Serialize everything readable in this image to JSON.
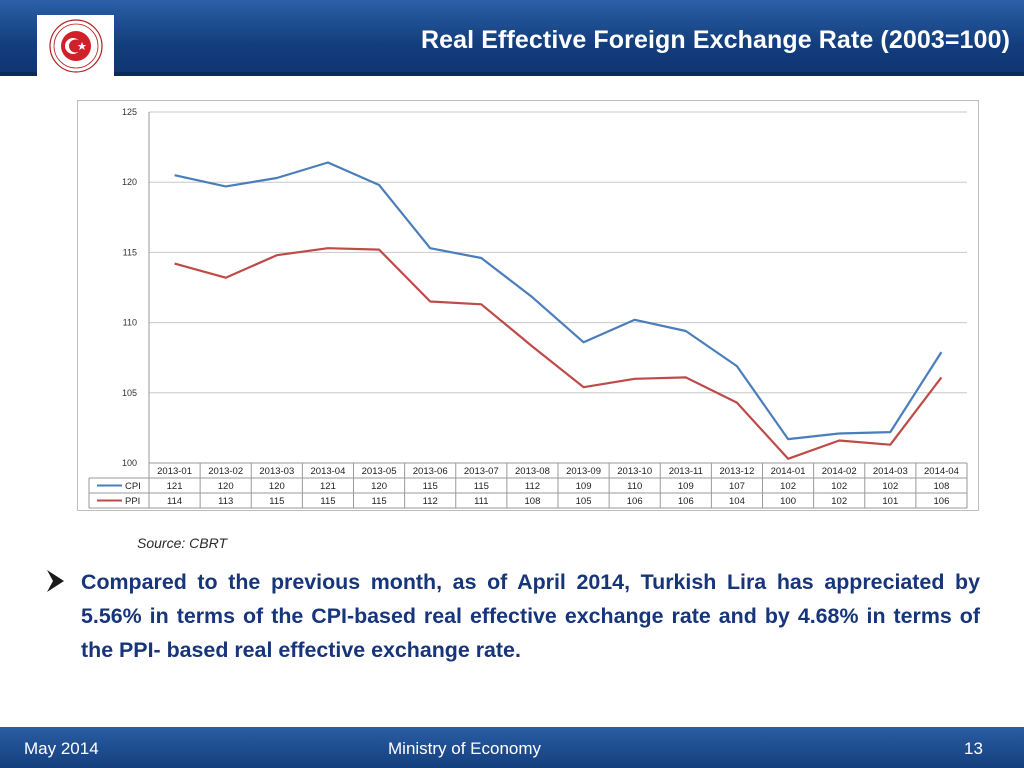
{
  "header": {
    "title": "Real Effective Foreign Exchange Rate (2003=100)"
  },
  "seal": {
    "icon": "ministry-seal-icon",
    "text_top": "REPUBLIC OF TURKEY",
    "text_bottom": "MINISTRY OF ECONOMY"
  },
  "source": "Source: CBRT",
  "body": {
    "bullet_icon": "arrow-bullet-icon",
    "text": "Compared to the previous month, as of April 2014, Turkish Lira has appreciated by 5.56% in terms of the CPI-based real effective exchange rate and by 4.68% in terms of the PPI- based real effective exchange rate."
  },
  "footer": {
    "date": "May 2014",
    "org": "Ministry of Economy",
    "page": "13"
  },
  "colors": {
    "header": "#123d7c",
    "text": "#17357a",
    "cpi": "#4a7ebb",
    "ppi": "#be4b48"
  },
  "chart_data": {
    "type": "line",
    "categories": [
      "2013-01",
      "2013-02",
      "2013-03",
      "2013-04",
      "2013-05",
      "2013-06",
      "2013-07",
      "2013-08",
      "2013-09",
      "2013-10",
      "2013-11",
      "2013-12",
      "2014-01",
      "2014-02",
      "2014-03",
      "2014-04"
    ],
    "series": [
      {
        "name": "CPI",
        "color": "#4a7ebb",
        "values": [
          120.5,
          119.7,
          120.3,
          121.4,
          119.8,
          115.3,
          114.6,
          111.8,
          108.6,
          110.2,
          109.4,
          106.9,
          101.7,
          102.1,
          102.2,
          107.9
        ],
        "table_values": [
          "121",
          "120",
          "120",
          "121",
          "120",
          "115",
          "115",
          "112",
          "109",
          "110",
          "109",
          "107",
          "102",
          "102",
          "102",
          "108"
        ]
      },
      {
        "name": "PPI",
        "color": "#be4b48",
        "values": [
          114.2,
          113.2,
          114.8,
          115.3,
          115.2,
          111.5,
          111.3,
          108.3,
          105.4,
          106.0,
          106.1,
          104.3,
          100.3,
          101.6,
          101.3,
          106.1
        ],
        "table_values": [
          "114",
          "113",
          "115",
          "115",
          "115",
          "112",
          "111",
          "108",
          "105",
          "106",
          "106",
          "104",
          "100",
          "102",
          "101",
          "106"
        ]
      }
    ],
    "ylim": [
      100,
      125
    ],
    "yticks": [
      "100",
      "105",
      "110",
      "115",
      "120",
      "125"
    ],
    "grid": true,
    "legend": "data-table-below"
  }
}
